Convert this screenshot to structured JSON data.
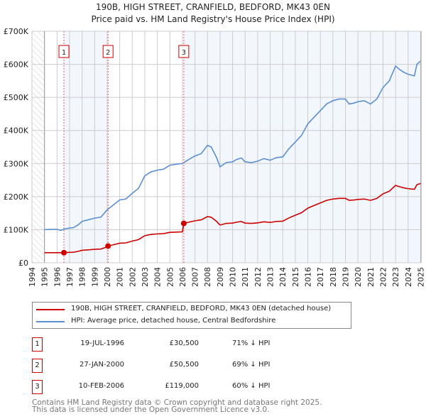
{
  "chart_data": {
    "type": "line",
    "title": "190B, HIGH STREET, CRANFIELD, BEDFORD, MK43 0EN",
    "subtitle": "Price paid vs. HM Land Registry's House Price Index (HPI)",
    "xlim": [
      1994,
      2025
    ],
    "ylim": [
      0,
      700000
    ],
    "yticks": [
      {
        "v": 0,
        "label": "£0"
      },
      {
        "v": 100000,
        "label": "£100K"
      },
      {
        "v": 200000,
        "label": "£200K"
      },
      {
        "v": 300000,
        "label": "£300K"
      },
      {
        "v": 400000,
        "label": "£400K"
      },
      {
        "v": 500000,
        "label": "£500K"
      },
      {
        "v": 600000,
        "label": "£600K"
      },
      {
        "v": 700000,
        "label": "£700K"
      }
    ],
    "xticks": [
      "1994",
      "1995",
      "1996",
      "1997",
      "1998",
      "1999",
      "2000",
      "2001",
      "2002",
      "2003",
      "2004",
      "2005",
      "2006",
      "2007",
      "2008",
      "2009",
      "2010",
      "2011",
      "2012",
      "2013",
      "2014",
      "2015",
      "2016",
      "2017",
      "2018",
      "2019",
      "2020",
      "2021",
      "2022",
      "2023",
      "2024",
      "2025"
    ],
    "hpi": {
      "name": "HPI: Average price, detached house, Central Bedfordshire",
      "color": "#5b8fd0",
      "points": [
        [
          1995,
          100
        ],
        [
          1995.5,
          101
        ],
        [
          1996,
          101
        ],
        [
          1996.3,
          98
        ],
        [
          1996.6,
          102
        ],
        [
          1997,
          105
        ],
        [
          1997.3,
          106
        ],
        [
          1997.7,
          115
        ],
        [
          1998,
          125
        ],
        [
          1998.5,
          130
        ],
        [
          1999,
          135
        ],
        [
          1999.5,
          138
        ],
        [
          2000,
          160
        ],
        [
          2000.5,
          175
        ],
        [
          2001,
          190
        ],
        [
          2001.5,
          193
        ],
        [
          2002,
          210
        ],
        [
          2002.5,
          225
        ],
        [
          2003,
          263
        ],
        [
          2003.5,
          275
        ],
        [
          2004,
          280
        ],
        [
          2004.5,
          283
        ],
        [
          2005,
          295
        ],
        [
          2005.5,
          298
        ],
        [
          2006,
          300
        ],
        [
          2006.5,
          312
        ],
        [
          2007,
          323
        ],
        [
          2007.5,
          330
        ],
        [
          2008,
          355
        ],
        [
          2008.3,
          350
        ],
        [
          2008.7,
          320
        ],
        [
          2009,
          290
        ],
        [
          2009.5,
          303
        ],
        [
          2010,
          305
        ],
        [
          2010.3,
          312
        ],
        [
          2010.7,
          317
        ],
        [
          2011,
          305
        ],
        [
          2011.5,
          303
        ],
        [
          2012,
          307
        ],
        [
          2012.5,
          315
        ],
        [
          2013,
          310
        ],
        [
          2013.5,
          318
        ],
        [
          2014,
          320
        ],
        [
          2014.5,
          345
        ],
        [
          2015,
          365
        ],
        [
          2015.5,
          385
        ],
        [
          2016,
          420
        ],
        [
          2016.5,
          440
        ],
        [
          2017,
          460
        ],
        [
          2017.5,
          480
        ],
        [
          2018,
          490
        ],
        [
          2018.5,
          495
        ],
        [
          2019,
          495
        ],
        [
          2019.3,
          480
        ],
        [
          2019.7,
          483
        ],
        [
          2020,
          487
        ],
        [
          2020.5,
          490
        ],
        [
          2021,
          480
        ],
        [
          2021.5,
          495
        ],
        [
          2022,
          530
        ],
        [
          2022.5,
          550
        ],
        [
          2023,
          595
        ],
        [
          2023.3,
          585
        ],
        [
          2023.7,
          575
        ],
        [
          2024,
          570
        ],
        [
          2024.5,
          565
        ],
        [
          2024.7,
          600
        ],
        [
          2025,
          610
        ]
      ]
    },
    "property": {
      "name": "190B, HIGH STREET, CRANFIELD, BEDFORD, MK43 0EN (detached house)",
      "color": "#cc0000"
    },
    "sales": [
      {
        "n": "1",
        "x": 1996.55,
        "date": "19-JUL-1996",
        "price": 30500,
        "price_label": "£30,500",
        "hpi_diff": "71% ↓ HPI"
      },
      {
        "n": "2",
        "x": 2000.07,
        "date": "27-JAN-2000",
        "price": 50500,
        "price_label": "£50,500",
        "hpi_diff": "69% ↓ HPI"
      },
      {
        "n": "3",
        "x": 2006.11,
        "date": "10-FEB-2006",
        "price": 119000,
        "price_label": "£119,000",
        "hpi_diff": "60% ↓ HPI"
      }
    ]
  },
  "footer": [
    "Contains HM Land Registry data © Crown copyright and database right 2025.",
    "This data is licensed under the Open Government Licence v3.0."
  ]
}
